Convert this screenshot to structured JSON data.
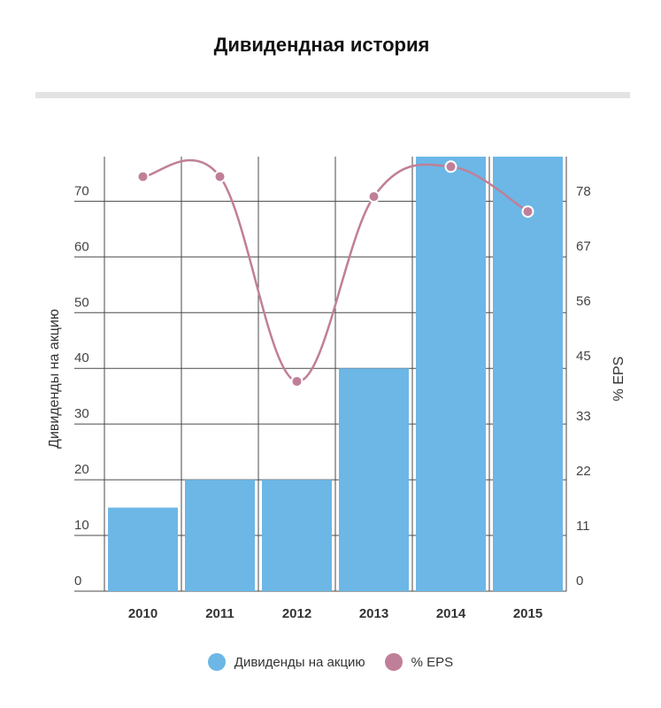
{
  "header": {
    "title": "Дивидендная история"
  },
  "colors": {
    "bars": "#6cb7e6",
    "line": "#c07f98",
    "grid": "#4a4a4a"
  },
  "chart_data": {
    "type": "bar+line",
    "categories": [
      "2010",
      "2011",
      "2012",
      "2013",
      "2014",
      "2015"
    ],
    "series": [
      {
        "name": "Дивиденды на акцию",
        "type": "bar",
        "axis": "left",
        "values": [
          15,
          20,
          20,
          40,
          78,
          78
        ]
      },
      {
        "name": "% EPS",
        "type": "line",
        "axis": "right",
        "values": [
          83,
          83,
          42,
          79,
          85,
          76
        ]
      }
    ],
    "ylabel": "Дивиденды на акцию",
    "y2label": "% EPS",
    "yticks": [
      0,
      10,
      20,
      30,
      40,
      50,
      60,
      70
    ],
    "y2ticks": [
      0,
      11,
      22,
      33,
      45,
      56,
      67,
      78
    ],
    "ylim": [
      0,
      78
    ],
    "y2lim": [
      0,
      87
    ],
    "grid": true,
    "legend": "bottom"
  }
}
